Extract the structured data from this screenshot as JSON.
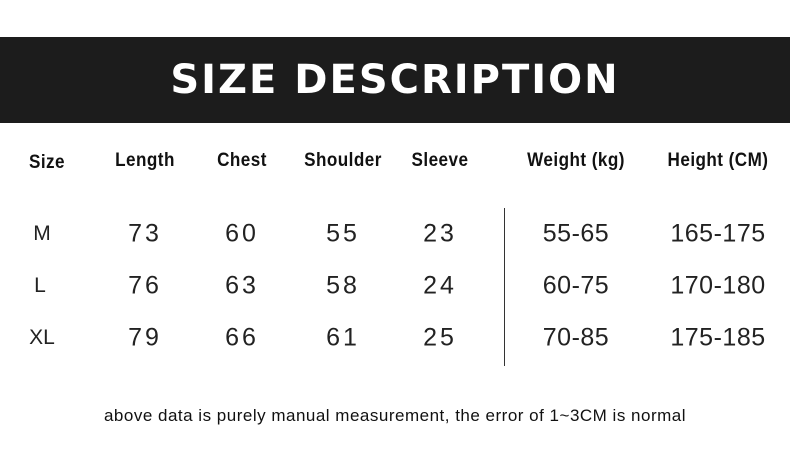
{
  "title": "SIZE DESCRIPTION",
  "columns": [
    "Size",
    "Length",
    "Chest",
    "Shoulder",
    "Sleeve",
    "Weight (kg)",
    "Height (CM)"
  ],
  "rows": [
    [
      "M",
      "73",
      "60",
      "55",
      "23",
      "55-65",
      "165-175"
    ],
    [
      "L",
      "76",
      "63",
      "58",
      "24",
      "60-75",
      "170-180"
    ],
    [
      "XL",
      "79",
      "66",
      "61",
      "25",
      "70-85",
      "175-185"
    ]
  ],
  "note": "above data is purely manual measurement, the error of 1~3CM is normal"
}
